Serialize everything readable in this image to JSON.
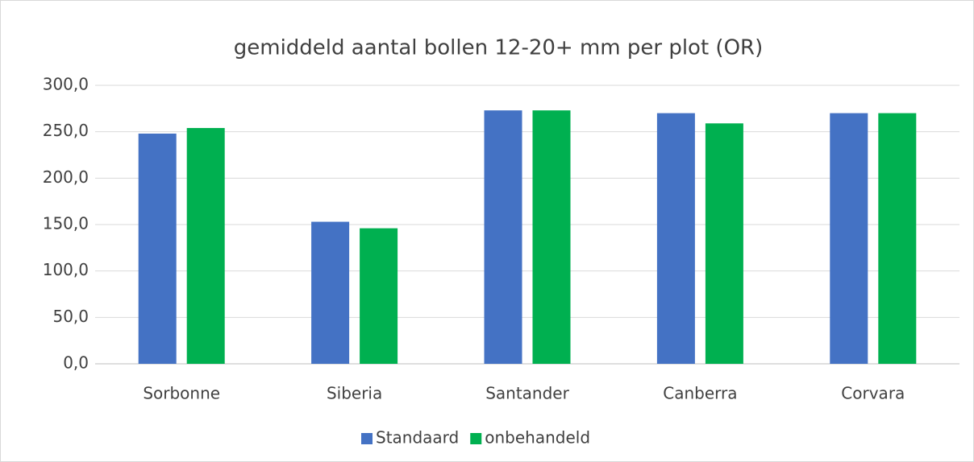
{
  "chart_data": {
    "type": "bar",
    "title": "gemiddeld aantal bollen 12-20+ mm per plot (OR)",
    "categories": [
      "Sorbonne",
      "Siberia",
      "Santander",
      "Canberra",
      "Corvara"
    ],
    "series": [
      {
        "name": "Standaard",
        "color": "#4472c4",
        "values": [
          248,
          153,
          273,
          270,
          270
        ]
      },
      {
        "name": "onbehandeld",
        "color": "#00b050",
        "values": [
          254,
          146,
          273,
          259,
          270
        ]
      }
    ],
    "ylim": [
      0,
      300
    ],
    "yticks": [
      {
        "value": 0,
        "label": "0,0"
      },
      {
        "value": 50,
        "label": "50,0"
      },
      {
        "value": 100,
        "label": "100,0"
      },
      {
        "value": 150,
        "label": "150,0"
      },
      {
        "value": 200,
        "label": "200,0"
      },
      {
        "value": 250,
        "label": "250,0"
      },
      {
        "value": 300,
        "label": "300,0"
      }
    ],
    "grid": true,
    "legend": "bottom"
  }
}
